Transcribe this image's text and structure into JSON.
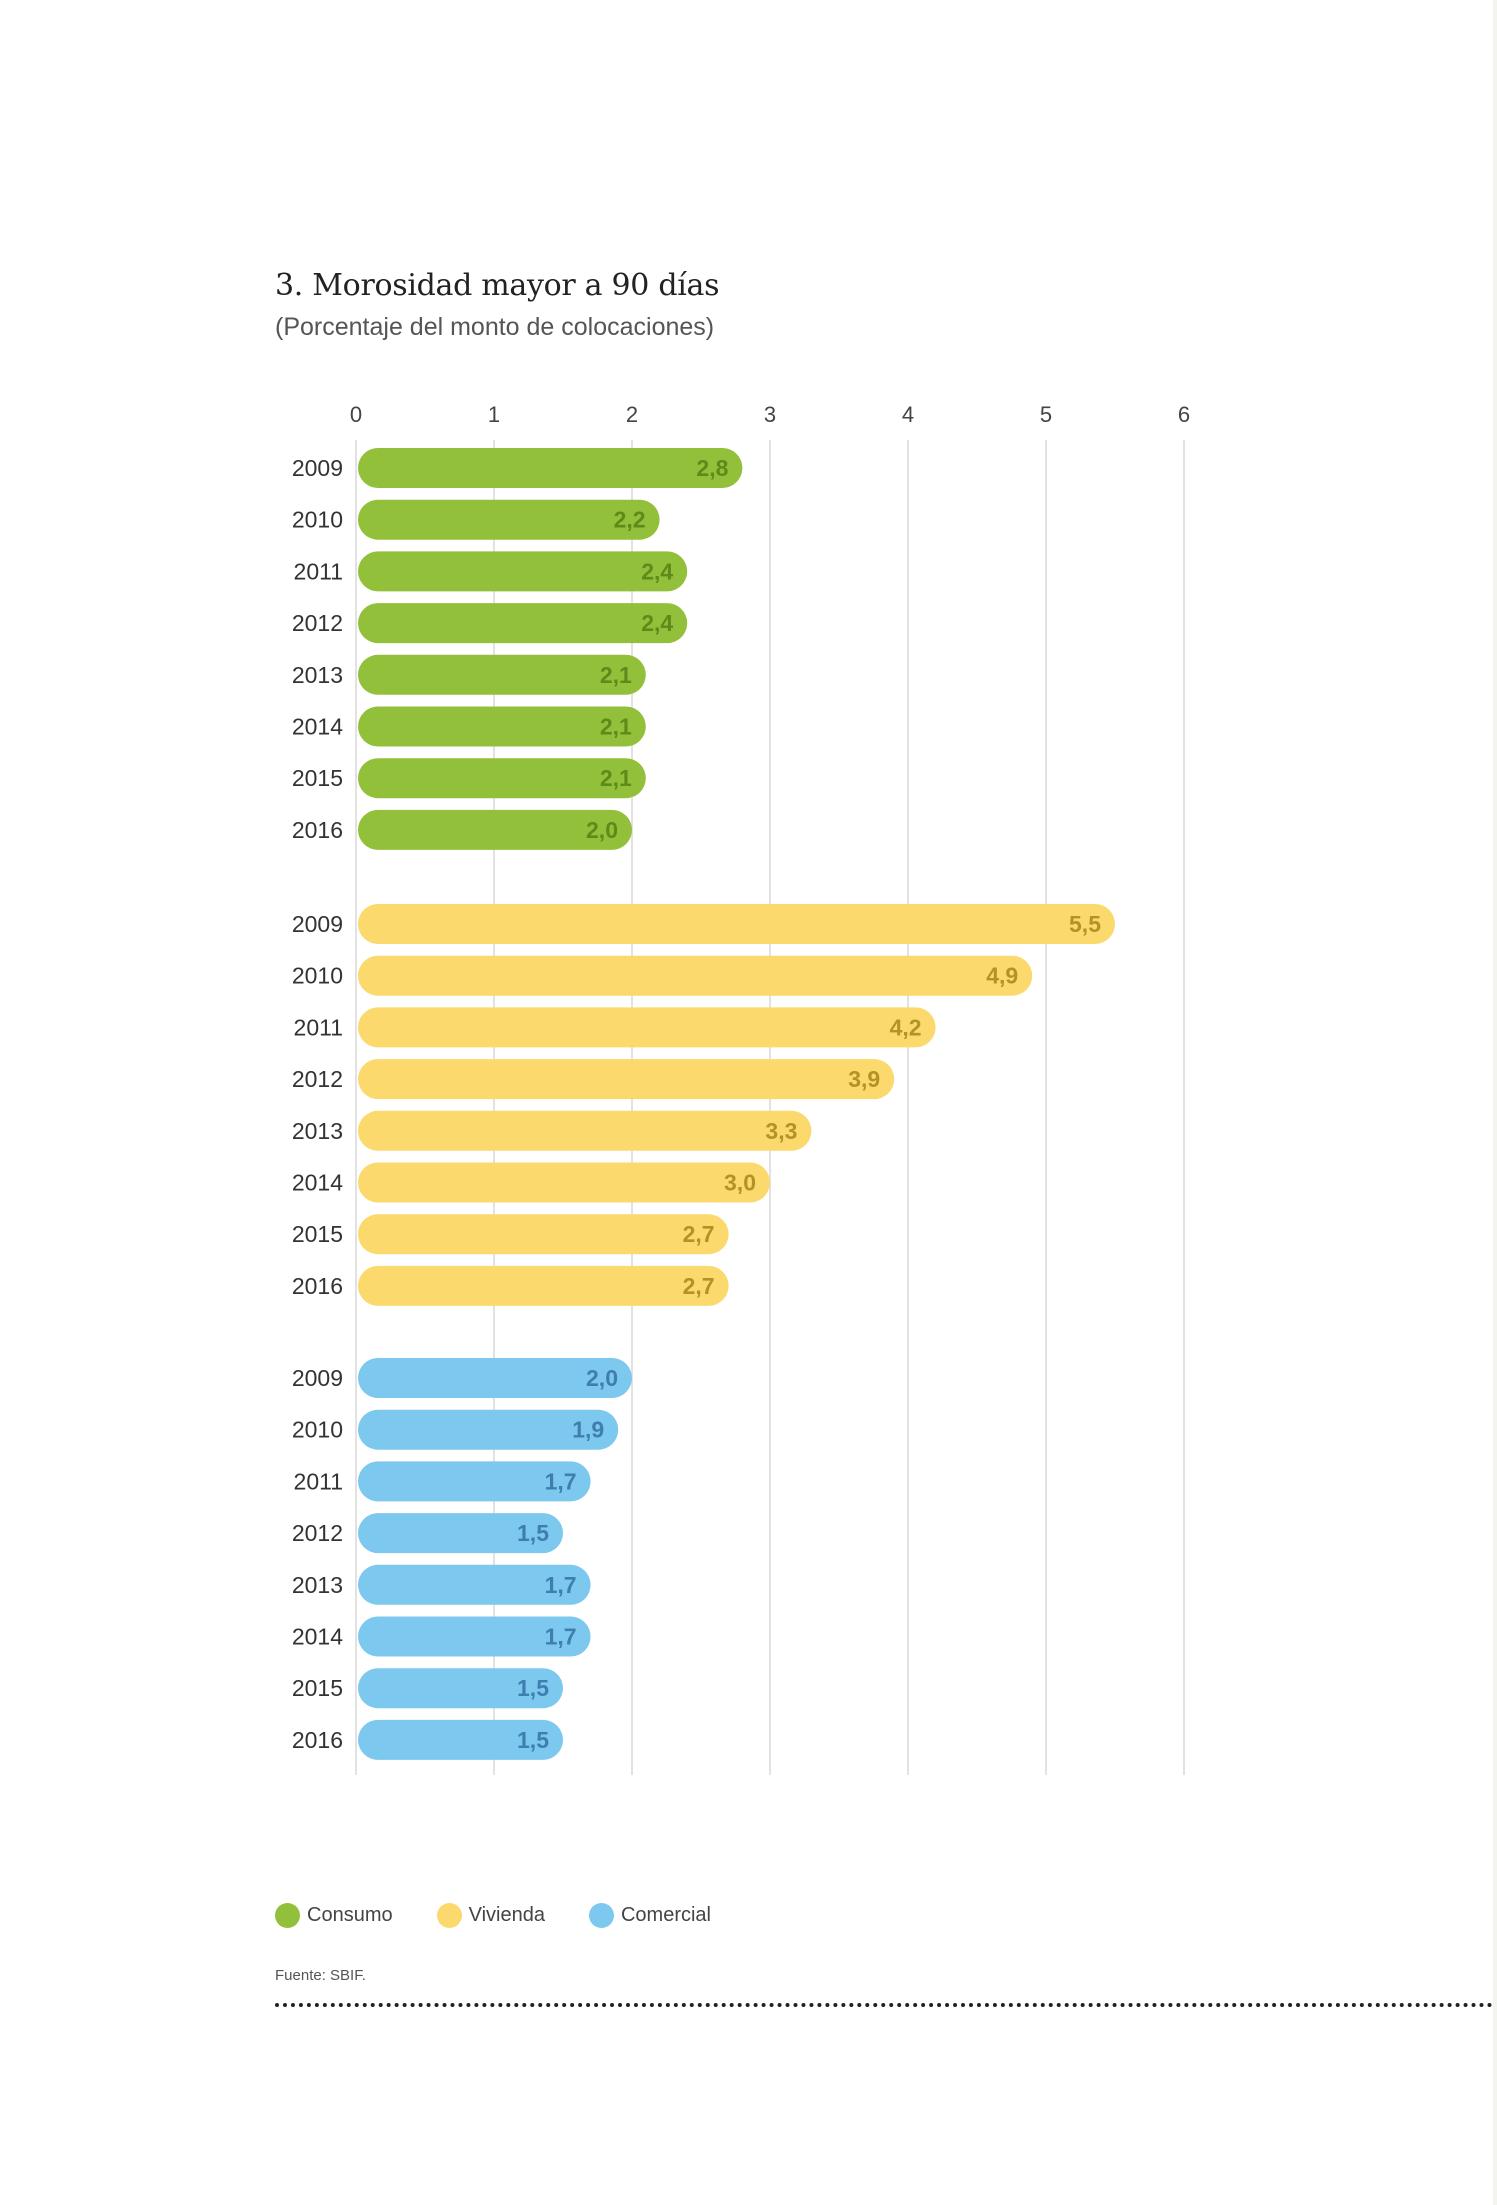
{
  "page": {
    "title": "3. Morosidad mayor a 90 días",
    "subtitle": "(Porcentaje del monto de colocaciones)",
    "source": "Fuente: SBIF."
  },
  "colors": {
    "consumo": "#93c03a",
    "consumo_label": "#5f8a1a",
    "vivienda": "#fbd96c",
    "vivienda_label": "#b39227",
    "comercial": "#7cc8ee",
    "comercial_label": "#3f7fb0",
    "grid": "#d9d9d9"
  },
  "chart_data": {
    "type": "bar",
    "orientation": "horizontal",
    "xlim": [
      0,
      6
    ],
    "xticks": [
      "0",
      "1",
      "2",
      "3",
      "4",
      "5",
      "6"
    ],
    "grid": true,
    "legend_position": "bottom-left",
    "groups": [
      {
        "name": "Consumo",
        "color_key": "consumo",
        "categories": [
          "2009",
          "2010",
          "2011",
          "2012",
          "2013",
          "2014",
          "2015",
          "2016"
        ],
        "values": [
          2.8,
          2.2,
          2.4,
          2.4,
          2.1,
          2.1,
          2.1,
          2.0
        ],
        "labels": [
          "2,8",
          "2,2",
          "2,4",
          "2,4",
          "2,1",
          "2,1",
          "2,1",
          "2,0"
        ]
      },
      {
        "name": "Vivienda",
        "color_key": "vivienda",
        "categories": [
          "2009",
          "2010",
          "2011",
          "2012",
          "2013",
          "2014",
          "2015",
          "2016"
        ],
        "values": [
          5.5,
          4.9,
          4.2,
          3.9,
          3.3,
          3.0,
          2.7,
          2.7
        ],
        "labels": [
          "5,5",
          "4,9",
          "4,2",
          "3,9",
          "3,3",
          "3,0",
          "2,7",
          "2,7"
        ]
      },
      {
        "name": "Comercial",
        "color_key": "comercial",
        "categories": [
          "2009",
          "2010",
          "2011",
          "2012",
          "2013",
          "2014",
          "2015",
          "2016"
        ],
        "values": [
          2.0,
          1.9,
          1.7,
          1.5,
          1.7,
          1.7,
          1.5,
          1.5
        ],
        "labels": [
          "2,0",
          "1,9",
          "1,7",
          "1,5",
          "1,7",
          "1,7",
          "1,5",
          "1,5"
        ]
      }
    ]
  },
  "legend": {
    "items": [
      {
        "label": "Consumo",
        "color_key": "consumo"
      },
      {
        "label": "Vivienda",
        "color_key": "vivienda"
      },
      {
        "label": "Comercial",
        "color_key": "comercial"
      }
    ]
  }
}
